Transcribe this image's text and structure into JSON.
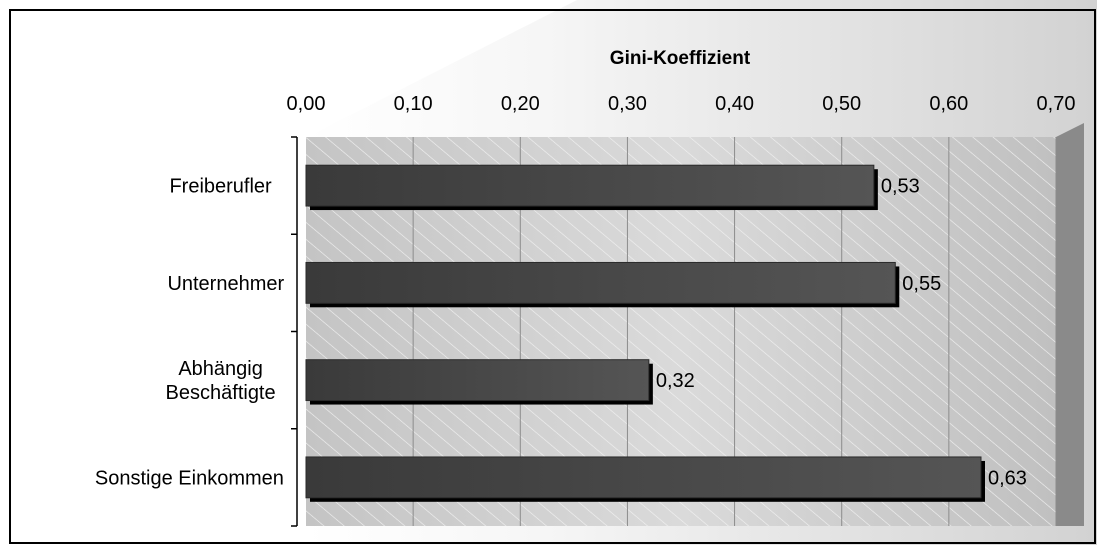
{
  "chart_data": {
    "type": "bar",
    "orientation": "horizontal",
    "title": "Gini-Koeffizient",
    "axis_position": "top",
    "xlim": [
      0,
      0.7
    ],
    "x_ticks": [
      "0,00",
      "0,10",
      "0,20",
      "0,30",
      "0,40",
      "0,50",
      "0,60",
      "0,70"
    ],
    "grid": true,
    "categories": [
      [
        "Freiberufler"
      ],
      [
        "Unternehmer"
      ],
      [
        "Abhängig",
        "Beschäftigte"
      ],
      [
        "Sonstige Einkommen"
      ]
    ],
    "values": [
      0.53,
      0.55,
      0.32,
      0.63
    ],
    "value_labels": [
      "0,53",
      "0,55",
      "0,32",
      "0,63"
    ],
    "colors": {
      "bar": "#464646",
      "bar_shadow": "#000000",
      "plot_background": "#d4d4d4",
      "gridline": "#8c8c8c",
      "frame": "#000000"
    }
  }
}
